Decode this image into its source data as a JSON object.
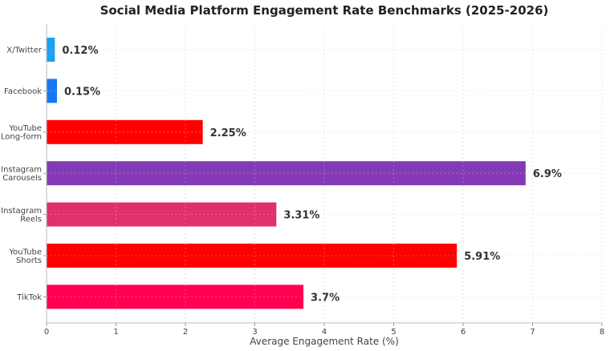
{
  "chart_data": {
    "type": "bar",
    "orientation": "horizontal",
    "title": "Social Media Platform Engagement Rate Benchmarks (2025-2026)",
    "xlabel": "Average Engagement Rate (%)",
    "ylabel": "",
    "xlim": [
      0,
      8
    ],
    "x_ticks": [
      "0",
      "1",
      "2",
      "3",
      "4",
      "5",
      "6",
      "7",
      "8"
    ],
    "grid": true,
    "categories": [
      [
        "X/Twitter"
      ],
      [
        "Facebook"
      ],
      [
        "YouTube",
        "Long-form"
      ],
      [
        "Instagram",
        "Carousels"
      ],
      [
        "Instagram",
        "Reels"
      ],
      [
        "YouTube",
        "Shorts"
      ],
      [
        "TikTok"
      ]
    ],
    "values": [
      0.12,
      0.15,
      2.25,
      6.9,
      3.31,
      5.91,
      3.7
    ],
    "data_labels": [
      "0.12%",
      "0.15%",
      "2.25%",
      "6.9%",
      "3.31%",
      "5.91%",
      "3.7%"
    ],
    "colors": [
      "#1da1f2",
      "#1877f2",
      "#ff0000",
      "#833ab4",
      "#e1306c",
      "#ff0000",
      "#ff0050"
    ]
  }
}
